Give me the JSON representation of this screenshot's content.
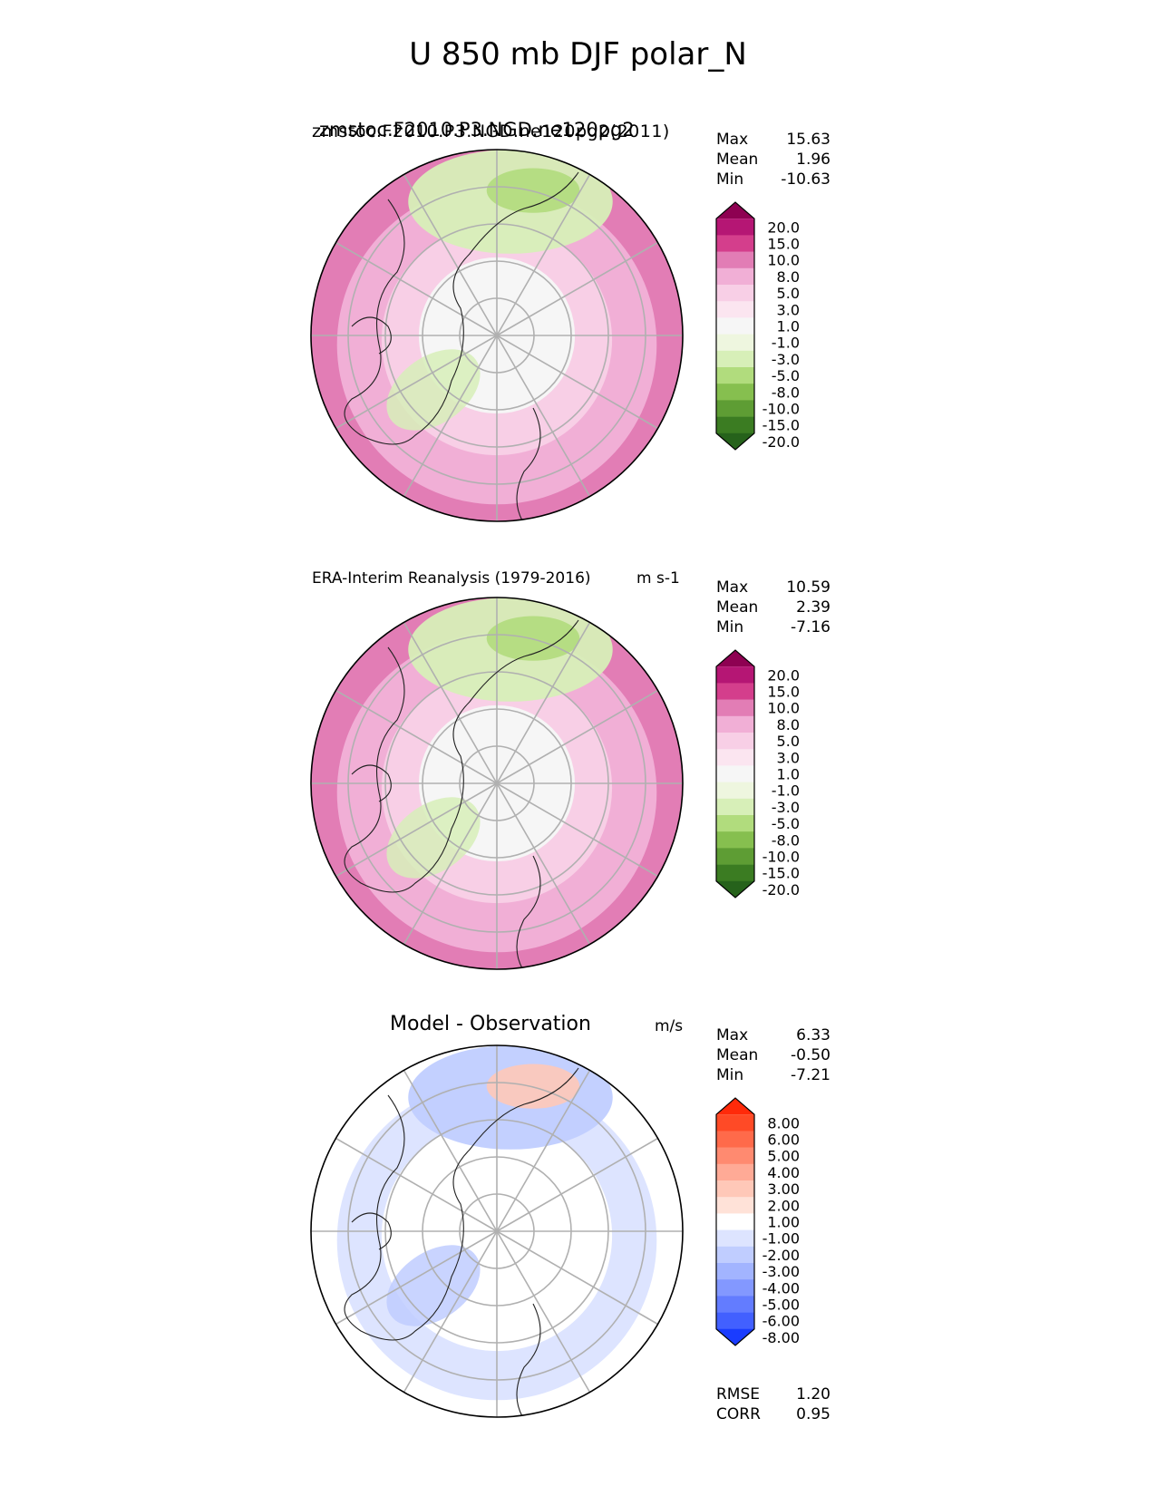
{
  "title": "U 850 mb DJF polar_N",
  "panels": [
    {
      "id": "model",
      "title": "zmstoc.F2010.P3.NGD.ne120pg2",
      "title_overlay": "zmstoc.F2010.P3.NGD.ne120pg2(2011)",
      "units": "",
      "stats": {
        "max_label": "Max",
        "max": "15.63",
        "mean_label": "Mean",
        "mean": "1.96",
        "min_label": "Min",
        "min": "-10.63"
      },
      "colorbar": {
        "labels": [
          "20.0",
          "15.0",
          "10.0",
          "8.0",
          "5.0",
          "3.0",
          "1.0",
          "-1.0",
          "-3.0",
          "-5.0",
          "-8.0",
          "-10.0",
          "-15.0",
          "-20.0"
        ],
        "colors": [
          "#8e0152",
          "#b51674",
          "#d43e8c",
          "#e27db5",
          "#f1afd6",
          "#f8cfe6",
          "#fbe5f0",
          "#f6f6f6",
          "#eef6df",
          "#d7efb8",
          "#b1dc7d",
          "#86bf4f",
          "#5e9d34",
          "#3b7c22",
          "#26621b"
        ]
      },
      "map_fill": {
        "rim": "#e27db5",
        "mid": "#f1afd6",
        "light": "#f8cfe6",
        "center": "#f6f6f6",
        "green": "#d7efb8",
        "green_dark": "#b1dc7d"
      }
    },
    {
      "id": "obs",
      "title": "ERA-Interim Reanalysis (1979-2016)",
      "units": "m s-1",
      "stats": {
        "max_label": "Max",
        "max": "10.59",
        "mean_label": "Mean",
        "mean": "2.39",
        "min_label": "Min",
        "min": "-7.16"
      },
      "colorbar": {
        "labels": [
          "20.0",
          "15.0",
          "10.0",
          "8.0",
          "5.0",
          "3.0",
          "1.0",
          "-1.0",
          "-3.0",
          "-5.0",
          "-8.0",
          "-10.0",
          "-15.0",
          "-20.0"
        ],
        "colors": [
          "#8e0152",
          "#b51674",
          "#d43e8c",
          "#e27db5",
          "#f1afd6",
          "#f8cfe6",
          "#fbe5f0",
          "#f6f6f6",
          "#eef6df",
          "#d7efb8",
          "#b1dc7d",
          "#86bf4f",
          "#5e9d34",
          "#3b7c22",
          "#26621b"
        ]
      },
      "map_fill": {
        "rim": "#e27db5",
        "mid": "#f1afd6",
        "light": "#f8cfe6",
        "center": "#f6f6f6",
        "green": "#d7efb8",
        "green_dark": "#b1dc7d"
      }
    },
    {
      "id": "diff",
      "title": "Model - Observation",
      "units": "m/s",
      "stats": {
        "max_label": "Max",
        "max": "6.33",
        "mean_label": "Mean",
        "mean": "-0.50",
        "min_label": "Min",
        "min": "-7.21"
      },
      "extra_stats": {
        "rmse_label": "RMSE",
        "rmse": "1.20",
        "corr_label": "CORR",
        "corr": "0.95"
      },
      "colorbar": {
        "labels": [
          "8.00",
          "6.00",
          "5.00",
          "4.00",
          "3.00",
          "2.00",
          "1.00",
          "-1.00",
          "-2.00",
          "-3.00",
          "-4.00",
          "-5.00",
          "-6.00",
          "-8.00"
        ],
        "colors": [
          "#ff2a0a",
          "#ff4a26",
          "#ff6a4a",
          "#ff8a70",
          "#ffaa96",
          "#ffc8b8",
          "#ffe2d8",
          "#ffffff",
          "#dde4ff",
          "#c0cdff",
          "#a2b4ff",
          "#8398ff",
          "#637cff",
          "#4260ff",
          "#1a3cff"
        ]
      },
      "map_fill": {
        "rim": "#ffffff",
        "mid": "#dde4ff",
        "light": "#ffffff",
        "center": "#ffffff",
        "green": "#c0cdff",
        "green_dark": "#ffc8b8"
      }
    }
  ],
  "chart_data": [
    {
      "type": "heatmap",
      "projection": "north-polar-stereographic",
      "title": "zmstoc.F2010.P3.NGD.ne120pg2",
      "variable": "U 850 mb DJF",
      "stats": {
        "max": 15.63,
        "mean": 1.96,
        "min": -10.63
      },
      "levels": [
        -20,
        -15,
        -10,
        -8,
        -5,
        -3,
        -1,
        1,
        3,
        5,
        8,
        10,
        15,
        20
      ],
      "grid": true
    },
    {
      "type": "heatmap",
      "projection": "north-polar-stereographic",
      "title": "ERA-Interim Reanalysis (1979-2016)",
      "units": "m s-1",
      "stats": {
        "max": 10.59,
        "mean": 2.39,
        "min": -7.16
      },
      "levels": [
        -20,
        -15,
        -10,
        -8,
        -5,
        -3,
        -1,
        1,
        3,
        5,
        8,
        10,
        15,
        20
      ],
      "grid": true
    },
    {
      "type": "heatmap",
      "projection": "north-polar-stereographic",
      "title": "Model - Observation",
      "units": "m/s",
      "stats": {
        "max": 6.33,
        "mean": -0.5,
        "min": -7.21,
        "rmse": 1.2,
        "corr": 0.95
      },
      "levels": [
        -8,
        -6,
        -5,
        -4,
        -3,
        -2,
        -1,
        1,
        2,
        3,
        4,
        5,
        6,
        8
      ],
      "grid": true
    }
  ]
}
